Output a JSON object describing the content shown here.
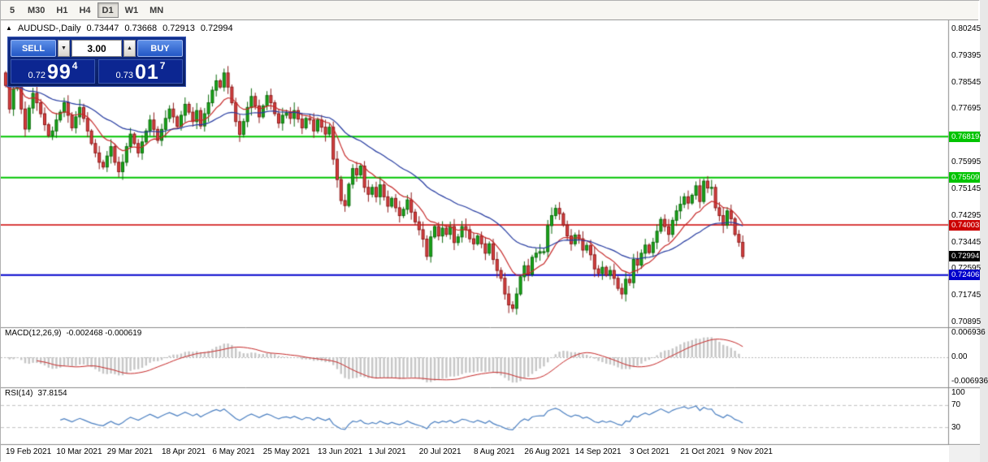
{
  "toolbar": {
    "timeframes": [
      {
        "label": "5",
        "selected": false
      },
      {
        "label": "M30",
        "selected": false
      },
      {
        "label": "H1",
        "selected": false
      },
      {
        "label": "H4",
        "selected": false
      },
      {
        "label": "D1",
        "selected": true
      },
      {
        "label": "W1",
        "selected": false
      },
      {
        "label": "MN",
        "selected": false
      }
    ]
  },
  "icons": {
    "caption_arrow": "▲",
    "spin_up": "▲",
    "spin_down": "▼"
  },
  "chart_header": {
    "symbol_period": "AUDUSD-,Daily",
    "open": "0.73447",
    "high": "0.73668",
    "low": "0.72913",
    "close": "0.72994"
  },
  "one_click": {
    "sell_label": "SELL",
    "buy_label": "BUY",
    "volume": "3.00",
    "sell_price_small": "0.72",
    "sell_price_big": "99",
    "sell_price_sup": "4",
    "buy_price_small": "0.73",
    "buy_price_big": "01",
    "buy_price_sup": "7"
  },
  "price_axis": {
    "labels": [
      "0.80245",
      "0.79395",
      "0.78545",
      "0.77695",
      "0.76845",
      "0.75995",
      "0.75145",
      "0.74295",
      "0.73445",
      "0.72595",
      "0.71745",
      "0.70895"
    ]
  },
  "hlines": [
    {
      "value": 0.76819,
      "label": "0.76819",
      "color": "#00c400",
      "width": 2
    },
    {
      "value": 0.75509,
      "label": "0.75509",
      "color": "#00c400",
      "width": 2
    },
    {
      "value": 0.74003,
      "label": "0.74003",
      "color": "#cc0000",
      "width": 1.4
    },
    {
      "value": 0.72406,
      "label": "0.72406",
      "color": "#0000cc",
      "width": 2
    }
  ],
  "current_price": {
    "value": 0.72994,
    "label": "0.72994",
    "color": "#000000"
  },
  "indicators": {
    "macd": {
      "label": "MACD(12,26,9)",
      "values_text": "-0.002468 -0.000619",
      "axis": [
        "0.006936",
        "0.00",
        "-0.006936"
      ],
      "range": 0.006936
    },
    "rsi": {
      "label": "RSI(14)",
      "value_text": "37.8154",
      "axis": [
        "100",
        "70",
        "30"
      ],
      "levels": [
        70,
        30
      ]
    }
  },
  "date_axis": [
    {
      "label": "19 Feb 2021",
      "i": 0
    },
    {
      "label": "10 Mar 2021",
      "i": 13
    },
    {
      "label": "29 Mar 2021",
      "i": 26
    },
    {
      "label": "18 Apr 2021",
      "i": 40
    },
    {
      "label": "6 May 2021",
      "i": 53
    },
    {
      "label": "25 May 2021",
      "i": 66
    },
    {
      "label": "13 Jun 2021",
      "i": 80
    },
    {
      "label": "1 Jul 2021",
      "i": 93
    },
    {
      "label": "20 Jul 2021",
      "i": 106
    },
    {
      "label": "8 Aug 2021",
      "i": 120
    },
    {
      "label": "26 Aug 2021",
      "i": 133
    },
    {
      "label": "14 Sep 2021",
      "i": 146
    },
    {
      "label": "3 Oct 2021",
      "i": 160
    },
    {
      "label": "21 Oct 2021",
      "i": 173
    },
    {
      "label": "9 Nov 2021",
      "i": 186
    }
  ],
  "chart_data": {
    "type": "candlestick",
    "symbol": "AUDUSD",
    "timeframe": "Daily",
    "ylim": [
      0.70895,
      0.80245
    ],
    "closes": [
      0.7845,
      0.777,
      0.7835,
      0.7865,
      0.777,
      0.7706,
      0.7773,
      0.782,
      0.779,
      0.7755,
      0.772,
      0.7685,
      0.77,
      0.7735,
      0.776,
      0.779,
      0.775,
      0.771,
      0.7745,
      0.7775,
      0.774,
      0.77,
      0.766,
      0.763,
      0.76,
      0.7585,
      0.762,
      0.765,
      0.76,
      0.757,
      0.76,
      0.765,
      0.769,
      0.766,
      0.763,
      0.7665,
      0.77,
      0.7735,
      0.7705,
      0.767,
      0.7705,
      0.774,
      0.777,
      0.7745,
      0.7715,
      0.775,
      0.7785,
      0.776,
      0.773,
      0.7765,
      0.7716,
      0.7755,
      0.779,
      0.783,
      0.786,
      0.784,
      0.7885,
      0.784,
      0.779,
      0.773,
      0.7689,
      0.773,
      0.7775,
      0.781,
      0.778,
      0.7745,
      0.778,
      0.7813,
      0.779,
      0.7755,
      0.7725,
      0.775,
      0.7758,
      0.774,
      0.7765,
      0.7738,
      0.771,
      0.774,
      0.7735,
      0.77,
      0.7735,
      0.7712,
      0.769,
      0.7712,
      0.761,
      0.7545,
      0.7478,
      0.7462,
      0.753,
      0.758,
      0.756,
      0.7588,
      0.752,
      0.7498,
      0.752,
      0.749,
      0.7528,
      0.749,
      0.746,
      0.7485,
      0.7455,
      0.743,
      0.745,
      0.748,
      0.7441,
      0.741,
      0.7385,
      0.7355,
      0.73,
      0.7362,
      0.7395,
      0.7365,
      0.739,
      0.737,
      0.7395,
      0.7344,
      0.7362,
      0.7395,
      0.7385,
      0.7356,
      0.734,
      0.7365,
      0.734,
      0.731,
      0.734,
      0.729,
      0.7255,
      0.723,
      0.718,
      0.7145,
      0.7134,
      0.718,
      0.7235,
      0.727,
      0.7243,
      0.7297,
      0.731,
      0.7315,
      0.7315,
      0.7398,
      0.743,
      0.7453,
      0.7436,
      0.74,
      0.7365,
      0.734,
      0.7368,
      0.7356,
      0.732,
      0.7335,
      0.7305,
      0.726,
      0.7245,
      0.7265,
      0.724,
      0.7255,
      0.723,
      0.7198,
      0.718,
      0.7227,
      0.7216,
      0.729,
      0.7272,
      0.731,
      0.7336,
      0.7312,
      0.7345,
      0.738,
      0.7418,
      0.7395,
      0.737,
      0.7415,
      0.7445,
      0.7466,
      0.749,
      0.747,
      0.7495,
      0.7525,
      0.7475,
      0.754,
      0.7518,
      0.752,
      0.7455,
      0.743,
      0.74,
      0.7445,
      0.742,
      0.737,
      0.7345,
      0.72994
    ],
    "last_candle": {
      "open": 0.73447,
      "high": 0.73668,
      "low": 0.72913,
      "close": 0.72994
    },
    "colors": {
      "up": "#18a818",
      "up_dark": "#0c6a0c",
      "down": "#d84040",
      "down_dark": "#8c1a1a",
      "ma_fast": "#c62828",
      "ma_slow": "#243aa0",
      "macd_hist": "#c6c6c6",
      "macd_signal": "#c62828",
      "rsi": "#4a7fc1"
    }
  }
}
